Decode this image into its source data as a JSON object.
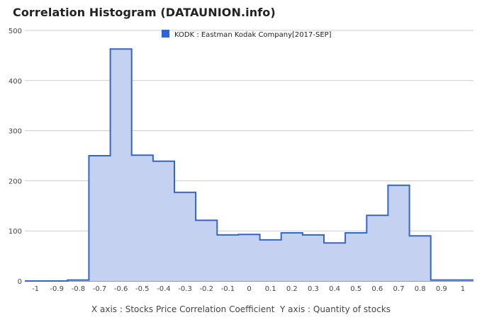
{
  "title": "Correlation Histogram (DATAUNION.info)",
  "axis_caption": "X axis : Stocks Price Correlation Coefficient  Y axis : Quantity of stocks",
  "chart_data": {
    "type": "area",
    "series": [
      {
        "name": "KODK : Eastman Kodak Company[2017-SEP]",
        "color": "#3366cc",
        "fill": "#c5d1f0",
        "x": [
          -1,
          -0.9,
          -0.8,
          -0.7,
          -0.6,
          -0.5,
          -0.4,
          -0.3,
          -0.2,
          -0.1,
          0,
          0.1,
          0.2,
          0.3,
          0.4,
          0.5,
          0.6,
          0.7,
          0.8,
          0.9,
          1
        ],
        "values": [
          0,
          0,
          2,
          250,
          463,
          251,
          239,
          177,
          121,
          92,
          93,
          82,
          96,
          92,
          76,
          96,
          131,
          191,
          90,
          2,
          2
        ]
      }
    ],
    "x_ticks": [
      "-1",
      "-0.9",
      "-0.8",
      "-0.7",
      "-0.6",
      "-0.5",
      "-0.4",
      "-0.3",
      "-0.2",
      "-0.1",
      "0",
      "0.1",
      "0.2",
      "0.3",
      "0.4",
      "0.5",
      "0.6",
      "0.7",
      "0.8",
      "0.9",
      "1"
    ],
    "y_ticks": [
      "0",
      "100",
      "200",
      "300",
      "400",
      "500"
    ],
    "ylim": [
      0,
      500
    ],
    "xlim": [
      -1.05,
      1.05
    ],
    "grid": true,
    "legend_position": "top"
  }
}
